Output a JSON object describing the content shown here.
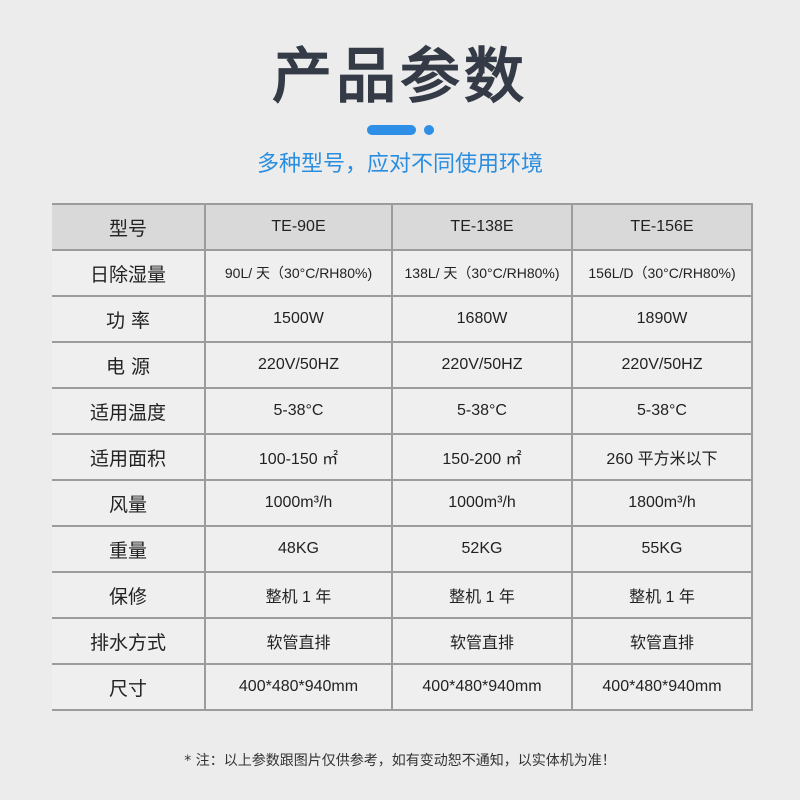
{
  "title": "产品参数",
  "subtitle": "多种型号，应对不同使用环境",
  "accent_color": "#2d8fe6",
  "table": {
    "header": [
      "型号",
      "TE-90E",
      "TE-138E",
      "TE-156E"
    ],
    "rows": [
      [
        "日除湿量",
        "90L/ 天（30°C/RH80%)",
        "138L/ 天（30°C/RH80%)",
        "156L/D（30°C/RH80%)"
      ],
      [
        "功  率",
        "1500W",
        "1680W",
        "1890W"
      ],
      [
        "电  源",
        "220V/50HZ",
        "220V/50HZ",
        "220V/50HZ"
      ],
      [
        "适用温度",
        "5-38°C",
        "5-38°C",
        "5-38°C"
      ],
      [
        "适用面积",
        "100-150 ㎡",
        "150-200 ㎡",
        "260 平方米以下"
      ],
      [
        "风量",
        "1000m³/h",
        "1000m³/h",
        "1800m³/h"
      ],
      [
        "重量",
        "48KG",
        "52KG",
        "55KG"
      ],
      [
        "保修",
        "整机 1 年",
        "整机 1 年",
        "整机 1 年"
      ],
      [
        "排水方式",
        "软管直排",
        "软管直排",
        "软管直排"
      ],
      [
        "尺寸",
        "400*480*940mm",
        "400*480*940mm",
        "400*480*940mm"
      ]
    ]
  },
  "note": "* 注：以上参数跟图片仅供参考，如有变动恕不通知，以实体机为准！"
}
